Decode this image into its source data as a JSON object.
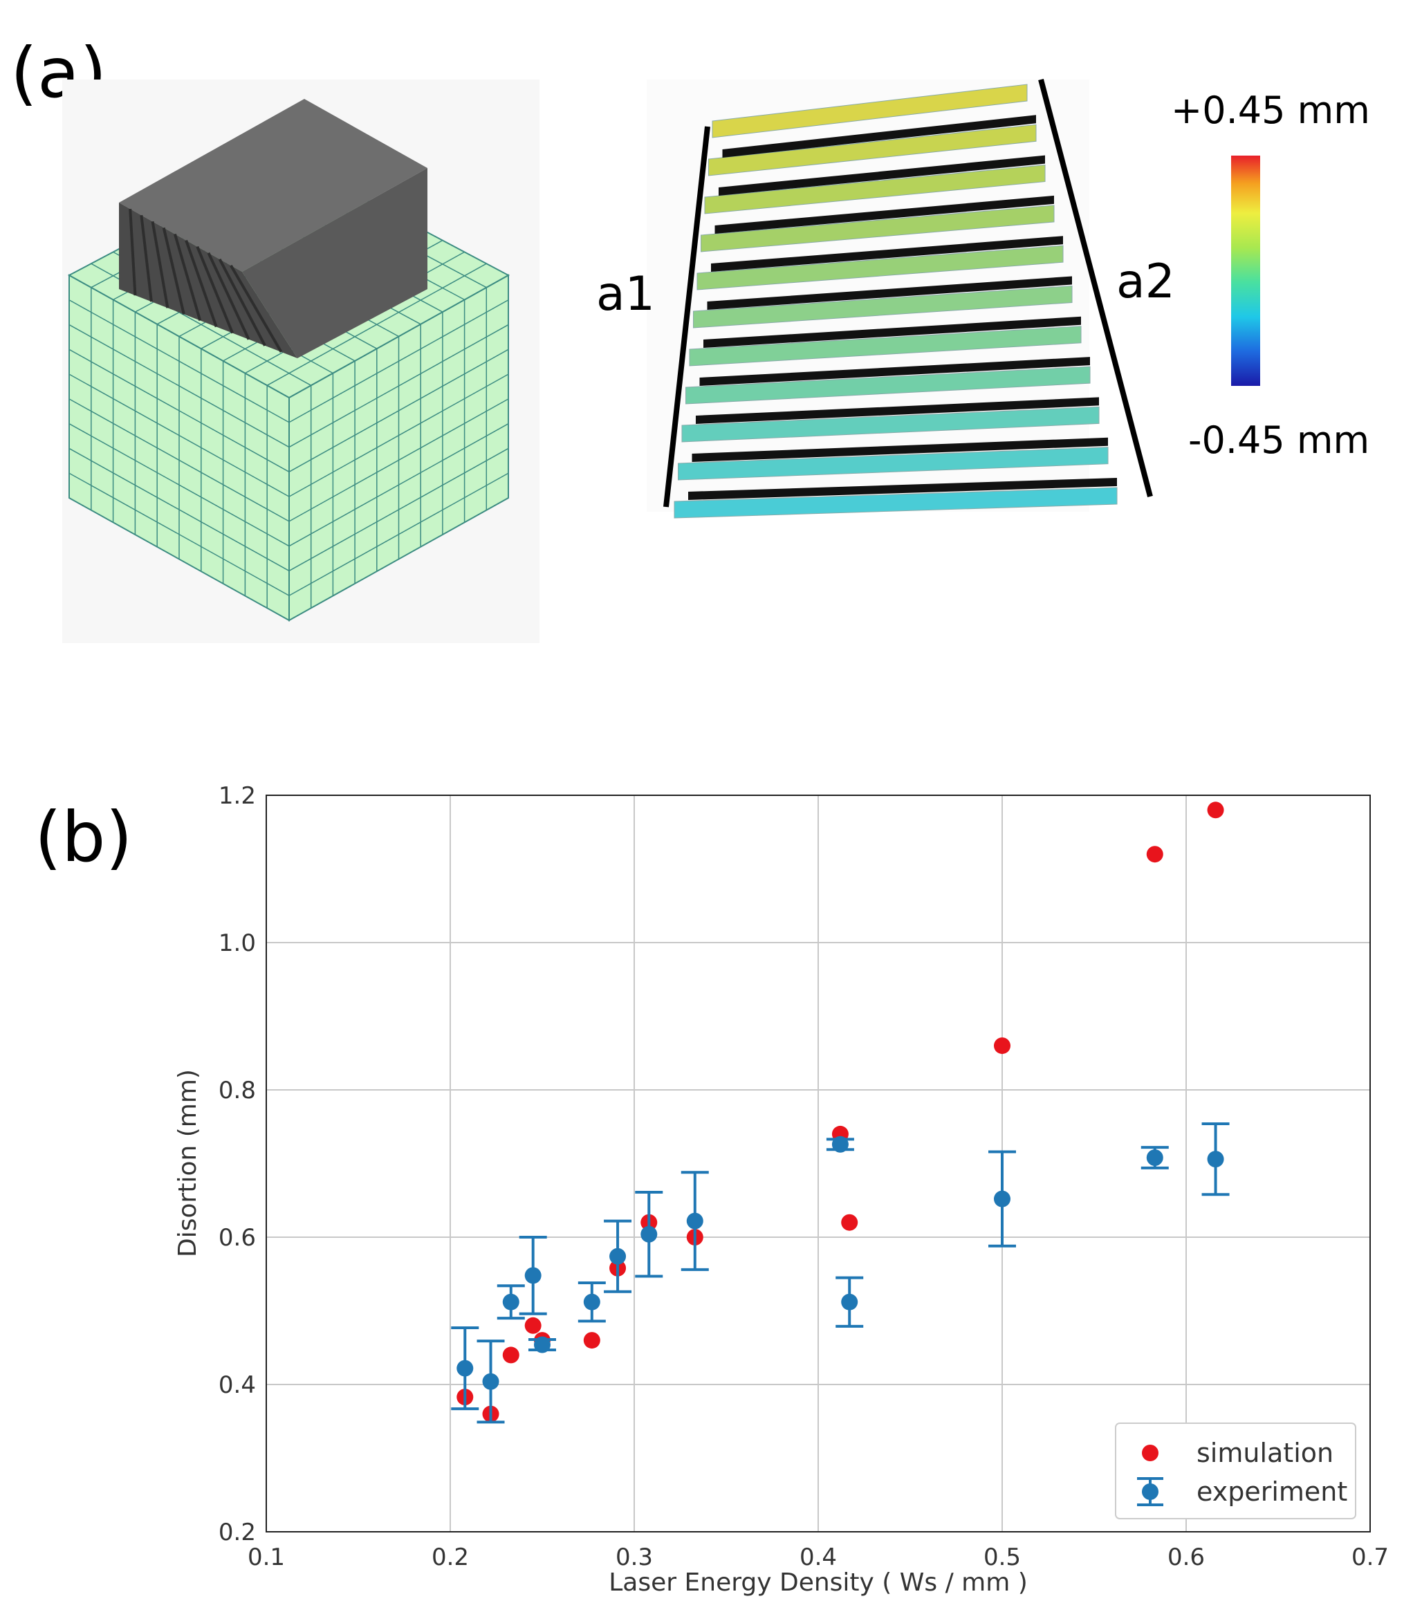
{
  "panels": {
    "a": "(a)",
    "b": "(b)"
  },
  "model": {
    "left_label": "a1",
    "right_label": "a2"
  },
  "colorbar": {
    "max_label": "+0.45 mm",
    "min_label": "-0.45 mm",
    "stops": [
      "#1a1aa8",
      "#1e6be0",
      "#1fc8e8",
      "#49e0a0",
      "#a8e850",
      "#eeee40",
      "#f5a020",
      "#e8202a"
    ]
  },
  "colors": {
    "simulation": "#e8141c",
    "experiment": "#1f77b4",
    "mesh_fill": "#c8f5c8",
    "mesh_line": "#3c8c82",
    "part": "#5a5a5a"
  },
  "chart_data": {
    "type": "scatter",
    "title": "",
    "xlabel": "Laser Energy Density ( Ws / mm )",
    "ylabel": "Disortion (mm)",
    "xlim": [
      0.1,
      0.7
    ],
    "ylim": [
      0.2,
      1.2
    ],
    "xticks": [
      "0.1",
      "0.2",
      "0.3",
      "0.4",
      "0.5",
      "0.6",
      "0.7"
    ],
    "yticks": [
      "0.2",
      "0.4",
      "0.6",
      "0.8",
      "1.0",
      "1.2"
    ],
    "grid": true,
    "legend_position": "bottom-right",
    "series": [
      {
        "name": "simulation",
        "marker": "circle",
        "x": [
          0.208,
          0.222,
          0.233,
          0.245,
          0.25,
          0.277,
          0.291,
          0.308,
          0.333,
          0.412,
          0.417,
          0.5,
          0.583,
          0.616
        ],
        "y": [
          0.383,
          0.36,
          0.44,
          0.48,
          0.46,
          0.46,
          0.558,
          0.62,
          0.6,
          0.74,
          0.62,
          0.86,
          1.12,
          1.18
        ]
      },
      {
        "name": "experiment",
        "marker": "circle",
        "error_bars": true,
        "x": [
          0.208,
          0.222,
          0.233,
          0.245,
          0.25,
          0.277,
          0.291,
          0.308,
          0.333,
          0.412,
          0.417,
          0.5,
          0.583,
          0.616
        ],
        "y": [
          0.422,
          0.404,
          0.512,
          0.548,
          0.454,
          0.512,
          0.574,
          0.604,
          0.622,
          0.726,
          0.512,
          0.652,
          0.708,
          0.706
        ],
        "yerr": [
          0.055,
          0.055,
          0.022,
          0.052,
          0.007,
          0.026,
          0.048,
          0.057,
          0.066,
          0.007,
          0.033,
          0.064,
          0.014,
          0.048
        ]
      }
    ]
  }
}
